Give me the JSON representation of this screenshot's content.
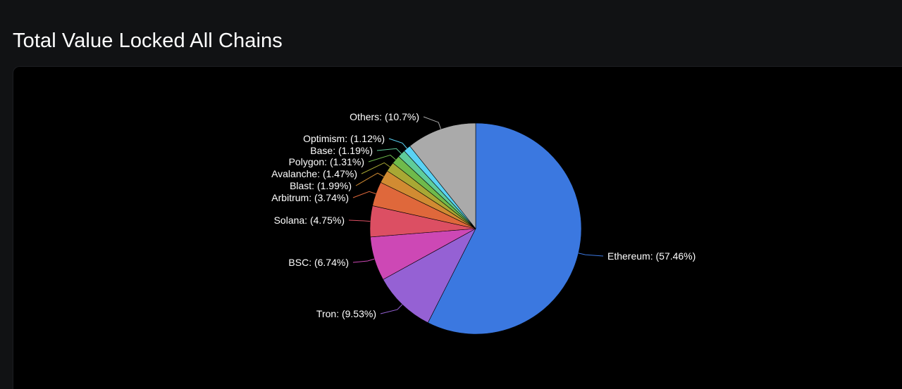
{
  "page": {
    "title": "Total Value Locked All Chains"
  },
  "chart_data": {
    "type": "pie",
    "title": "Total Value Locked All Chains",
    "slices": [
      {
        "label": "Ethereum: (57.46%)",
        "name": "Ethereum",
        "value": 57.46,
        "color": "#3b78e0"
      },
      {
        "label": "Tron: (9.53%)",
        "name": "Tron",
        "value": 9.53,
        "color": "#9561d4"
      },
      {
        "label": "BSC: (6.74%)",
        "name": "BSC",
        "value": 6.74,
        "color": "#cd48b5"
      },
      {
        "label": "Solana: (4.75%)",
        "name": "Solana",
        "value": 4.75,
        "color": "#dc4f63"
      },
      {
        "label": "Arbitrum: (3.74%)",
        "name": "Arbitrum",
        "value": 3.74,
        "color": "#df683b"
      },
      {
        "label": "Blast: (1.99%)",
        "name": "Blast",
        "value": 1.99,
        "color": "#d18b32"
      },
      {
        "label": "Avalanche: (1.47%)",
        "name": "Avalanche",
        "value": 1.47,
        "color": "#a8a834"
      },
      {
        "label": "Polygon: (1.31%)",
        "name": "Polygon",
        "value": 1.31,
        "color": "#6fba4b"
      },
      {
        "label": "Base: (1.19%)",
        "name": "Base",
        "value": 1.19,
        "color": "#5fcc9a"
      },
      {
        "label": "Optimism: (1.12%)",
        "name": "Optimism",
        "value": 1.12,
        "color": "#5ad2f4"
      },
      {
        "label": "Others: (10.7%)",
        "name": "Others",
        "value": 10.7,
        "color": "#aaaaaa"
      }
    ],
    "start_angle": "12 o'clock, clockwise",
    "legend": "none (leader-line labels)"
  }
}
